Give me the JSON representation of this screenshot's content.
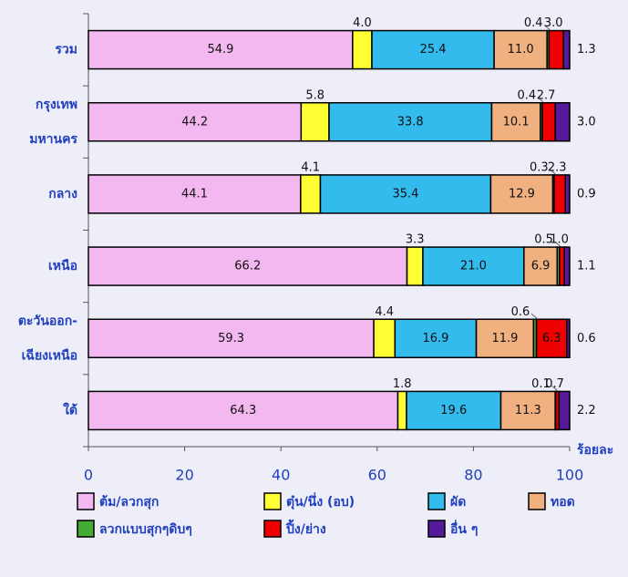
{
  "chart_data": {
    "type": "stacked_barh",
    "categories": [
      [
        "รวม"
      ],
      [
        "กรุงเทพ",
        "มหานคร"
      ],
      [
        "กลาง"
      ],
      [
        "เหนือ"
      ],
      [
        "ตะวันออก-",
        "เฉียงเหนือ"
      ],
      [
        "ใต้"
      ]
    ],
    "series": [
      {
        "name": "ต้ม/ลวกสุก",
        "color": "#f4b8f0",
        "values": [
          54.9,
          44.2,
          44.1,
          66.2,
          59.3,
          64.3
        ],
        "value_labels": [
          "54.9",
          "44.2",
          "44.1",
          "66.2",
          "59.3",
          "64.3"
        ]
      },
      {
        "name": "ตุ๋น/นึ่ง (อบ)",
        "color": "#ffff33",
        "values": [
          4.0,
          5.8,
          4.1,
          3.3,
          4.4,
          1.8
        ],
        "value_labels": [
          "4.0",
          "5.8",
          "4.1",
          "3.3",
          "4.4",
          "1.8"
        ]
      },
      {
        "name": "ผัด",
        "color": "#33bbee",
        "values": [
          25.4,
          33.8,
          35.4,
          21.0,
          16.9,
          19.6
        ],
        "value_labels": [
          "25.4",
          "33.8",
          "35.4",
          "21.0",
          "16.9",
          "19.6"
        ]
      },
      {
        "name": "ทอด",
        "color": "#f0b080",
        "values": [
          11.0,
          10.1,
          12.9,
          6.9,
          11.9,
          11.3
        ],
        "value_labels": [
          "11.0",
          "10.1",
          "12.9",
          "6.9",
          "11.9",
          "11.3"
        ]
      },
      {
        "name": "ลวกแบบสุกๆดิบๆ",
        "color": "#44aa33",
        "values": [
          0.4,
          0.4,
          0.3,
          0.5,
          0.6,
          0.1
        ],
        "value_labels": [
          "0.4",
          "0.4",
          "0.3",
          "0.5",
          "0.6",
          "0.1"
        ]
      },
      {
        "name": "ปิ้ง/ย่าง",
        "color": "#ee0000",
        "values": [
          3.0,
          2.7,
          2.3,
          1.0,
          6.3,
          0.7
        ],
        "value_labels": [
          "3.0",
          "2.7",
          "2.3",
          "1.0",
          "6.3",
          "0.7"
        ]
      },
      {
        "name": "อื่น ๆ",
        "color": "#551a99",
        "values": [
          1.3,
          3.0,
          0.9,
          1.1,
          0.6,
          2.2
        ],
        "value_labels": [
          "1.3",
          "3.0",
          "0.9",
          "1.1",
          "0.6",
          "2.2"
        ]
      }
    ],
    "x_label": "ร้อยละ",
    "xlim": [
      0,
      100
    ],
    "xticks": [
      0,
      20,
      40,
      60,
      80,
      100
    ]
  }
}
